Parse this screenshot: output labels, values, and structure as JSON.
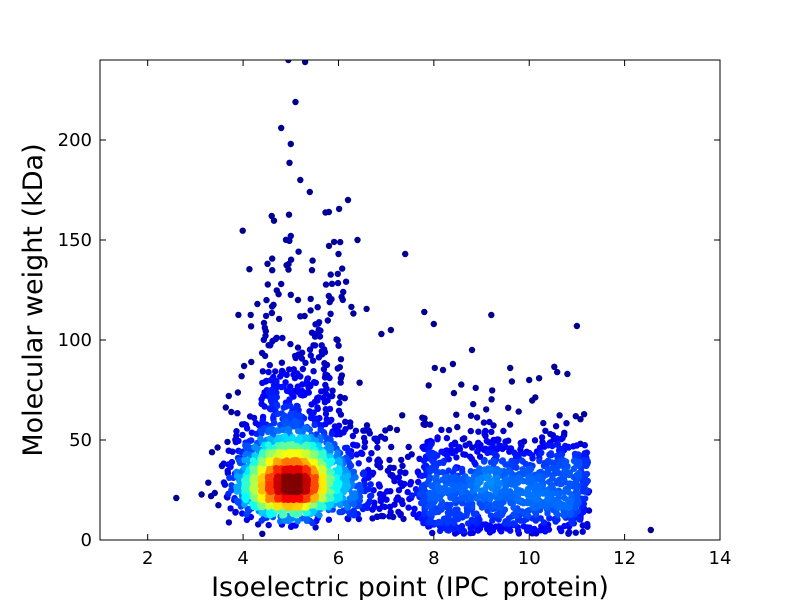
{
  "chart_data": {
    "type": "scatter",
    "title": "",
    "xlabel": "Isoelectric point (IPC_protein)",
    "ylabel": "Molecular weight (kDa)",
    "xlim": [
      1,
      14
    ],
    "ylim": [
      0,
      240
    ],
    "xticks": [
      2,
      4,
      6,
      8,
      10,
      12,
      14
    ],
    "yticks": [
      0,
      50,
      100,
      150,
      200
    ],
    "grid": false,
    "legend": "none",
    "color_encoding": "point density (jet colormap: dark blue = low, dark red = high)",
    "colormap_stops": [
      "#00007f",
      "#0000ff",
      "#007fff",
      "#00ffff",
      "#7fff7f",
      "#ffff00",
      "#ff7f00",
      "#ff0000",
      "#7f0000"
    ],
    "series": [
      {
        "clusters": [
          {
            "description": "main acidic cluster",
            "center": [
              5.0,
              28
            ],
            "spread": [
              0.55,
              11
            ]
          },
          {
            "description": "basic cluster",
            "center": [
              9.5,
              25
            ],
            "spread": [
              1.3,
              13
            ]
          }
        ],
        "outliers": [
          {
            "x": 4.95,
            "y": 240
          },
          {
            "x": 5.3,
            "y": 239
          },
          {
            "x": 5.1,
            "y": 219
          },
          {
            "x": 4.8,
            "y": 206
          },
          {
            "x": 5.0,
            "y": 198
          },
          {
            "x": 5.2,
            "y": 180
          },
          {
            "x": 5.4,
            "y": 174
          },
          {
            "x": 6.2,
            "y": 170
          },
          {
            "x": 4.6,
            "y": 162
          },
          {
            "x": 5.8,
            "y": 164
          },
          {
            "x": 6.4,
            "y": 150
          },
          {
            "x": 5.0,
            "y": 152
          },
          {
            "x": 6.0,
            "y": 143
          },
          {
            "x": 7.4,
            "y": 143
          },
          {
            "x": 4.3,
            "y": 118
          },
          {
            "x": 8.0,
            "y": 108
          },
          {
            "x": 7.8,
            "y": 114
          },
          {
            "x": 11.0,
            "y": 107
          },
          {
            "x": 7.1,
            "y": 105
          },
          {
            "x": 6.9,
            "y": 103
          },
          {
            "x": 8.8,
            "y": 95
          },
          {
            "x": 10.0,
            "y": 80
          },
          {
            "x": 10.8,
            "y": 83
          },
          {
            "x": 12.55,
            "y": 5
          },
          {
            "x": 2.6,
            "y": 21
          },
          {
            "x": 3.7,
            "y": 72
          },
          {
            "x": 8.4,
            "y": 88
          },
          {
            "x": 9.6,
            "y": 86
          },
          {
            "x": 6.1,
            "y": 124
          },
          {
            "x": 4.8,
            "y": 128
          }
        ]
      }
    ]
  }
}
